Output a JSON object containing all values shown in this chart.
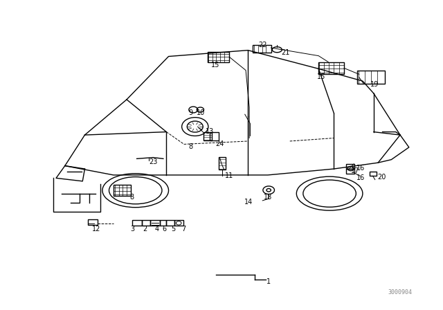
{
  "bg_color": "#ffffff",
  "line_color": "#000000",
  "fig_width": 6.4,
  "fig_height": 4.48,
  "dpi": 100,
  "part_number": "3000904"
}
